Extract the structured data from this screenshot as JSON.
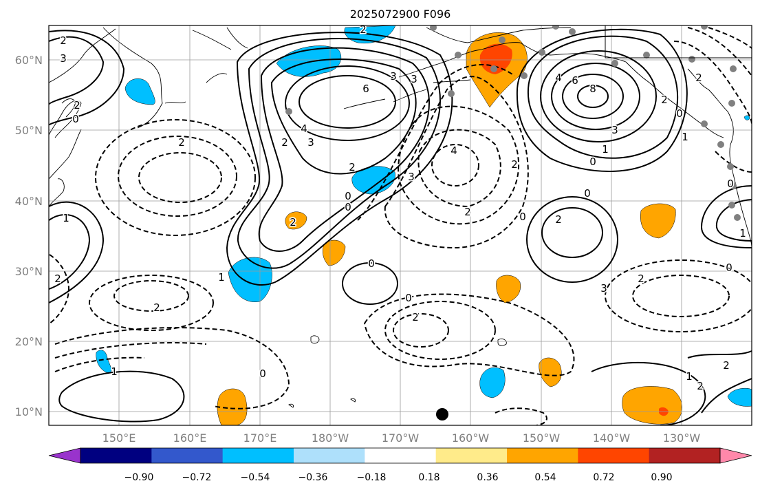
{
  "map": {
    "title": "2025072900 F096",
    "lat_ticks": [
      "60°N",
      "50°N",
      "40°N",
      "30°N",
      "20°N",
      "10°N"
    ],
    "lon_ticks": [
      "150°E",
      "160°E",
      "170°E",
      "180°W",
      "170°W",
      "160°W",
      "150°W",
      "140°W",
      "130°W"
    ],
    "contour_labels": [
      "2",
      "3",
      "2",
      "0",
      "1",
      "2",
      "2",
      "6",
      "4",
      "3",
      "2",
      "0",
      "2",
      "3",
      "0",
      "1",
      "2",
      "3",
      "3",
      "2",
      "0",
      "2",
      "2",
      "1",
      "0",
      "4",
      "2",
      "0",
      "8",
      "6",
      "4",
      "3",
      "1",
      "0",
      "2",
      "0",
      "1",
      "1",
      "2",
      "2",
      "2",
      "3",
      "0",
      "2",
      "0",
      "0",
      "0",
      "2",
      "1",
      "2"
    ],
    "shading_colors": {
      "negative_light": "#aee0fb",
      "negative": "#00bfff",
      "positive_light": "#ffeb8a",
      "positive": "#ffa500",
      "positive_strong": "#ff4500",
      "positive_max": "#b22222"
    },
    "marker_colors": {
      "station": "#808080",
      "center": "#000000"
    }
  },
  "colorbar": {
    "colors": [
      "#9933cc",
      "#000080",
      "#3358cc",
      "#00bfff",
      "#aee0fb",
      "#ffffff",
      "#ffeb8a",
      "#ffa500",
      "#ff4500",
      "#b22222",
      "#ff88aa"
    ],
    "tick_labels": [
      "−0.90",
      "−0.72",
      "−0.54",
      "−0.36",
      "−0.18",
      "0.18",
      "0.36",
      "0.54",
      "0.72",
      "0.90"
    ]
  }
}
